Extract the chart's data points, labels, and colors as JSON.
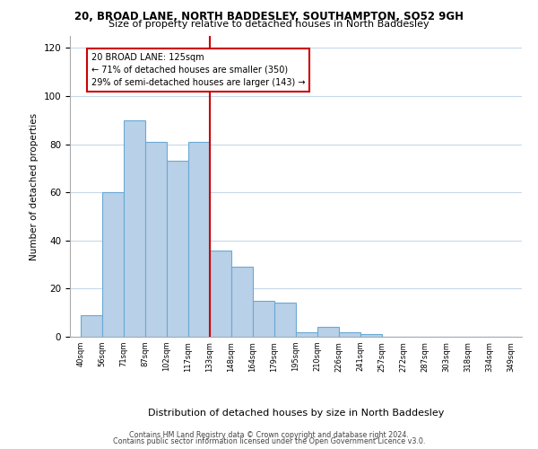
{
  "title_line1": "20, BROAD LANE, NORTH BADDESLEY, SOUTHAMPTON, SO52 9GH",
  "title_line2": "Size of property relative to detached houses in North Baddesley",
  "xlabel": "Distribution of detached houses by size in North Baddesley",
  "ylabel": "Number of detached properties",
  "tick_labels": [
    "40sqm",
    "56sqm",
    "71sqm",
    "87sqm",
    "102sqm",
    "117sqm",
    "133sqm",
    "148sqm",
    "164sqm",
    "179sqm",
    "195sqm",
    "210sqm",
    "226sqm",
    "241sqm",
    "257sqm",
    "272sqm",
    "287sqm",
    "303sqm",
    "318sqm",
    "334sqm",
    "349sqm"
  ],
  "bar_values": [
    9,
    60,
    90,
    81,
    73,
    81,
    36,
    29,
    15,
    14,
    2,
    4,
    2,
    1,
    0,
    0,
    0,
    0,
    0,
    0
  ],
  "bar_color": "#b8d0e8",
  "bar_edge_color": "#6aaad4",
  "vline_color": "#cc0000",
  "annotation_text": "20 BROAD LANE: 125sqm\n← 71% of detached houses are smaller (350)\n29% of semi-detached houses are larger (143) →",
  "annotation_box_color": "#ffffff",
  "annotation_box_edge": "#cc0000",
  "ylim": [
    0,
    125
  ],
  "yticks": [
    0,
    20,
    40,
    60,
    80,
    100,
    120
  ],
  "footer_line1": "Contains HM Land Registry data © Crown copyright and database right 2024.",
  "footer_line2": "Contains public sector information licensed under the Open Government Licence v3.0.",
  "bg_color": "#ffffff",
  "grid_color": "#c8d8e8"
}
